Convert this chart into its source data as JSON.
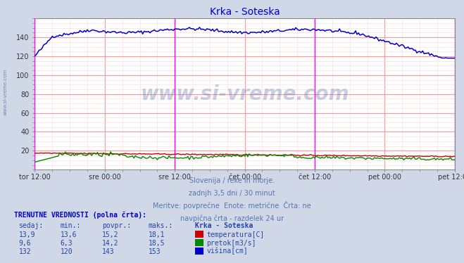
{
  "title": "Krka - Soteska",
  "title_color": "#0000cc",
  "bg_color": "#d0d8e8",
  "plot_bg_color": "#ffffff",
  "grid_color_major": "#ff9999",
  "grid_color_minor": "#ffdddd",
  "x_tick_labels": [
    "tor 12:00",
    "sre 00:00",
    "sre 12:00",
    "čet 00:00",
    "čet 12:00",
    "pet 00:00",
    "pet 12:00"
  ],
  "x_tick_positions": [
    0,
    24,
    48,
    72,
    96,
    120,
    144
  ],
  "vline_positions": [
    0,
    48,
    96,
    144
  ],
  "vline_color": "#ff00ff",
  "ylim": [
    0,
    160
  ],
  "yticks": [
    20,
    40,
    60,
    80,
    100,
    120,
    140
  ],
  "n_points": 289,
  "temp_color": "#cc0000",
  "flow_color": "#008800",
  "height_color": "#0000cc",
  "watermark": "www.si-vreme.com",
  "watermark_color": "#4466aa",
  "watermark_alpha": 0.3,
  "sub_text1": "Slovenija / reke in morje.",
  "sub_text2": "zadnjh 3,5 dni / 30 minut",
  "sub_text3": "Meritve: povprečne  Enote: metrične  Črta: ne",
  "sub_text4": "navpična črta - razdelek 24 ur",
  "table_header": "TRENUTNE VREDNOSTI (polna črta):",
  "col_headers": [
    "sedaj:",
    "min.:",
    "povpr.:",
    "maks.:",
    "Krka - Soteska"
  ],
  "row1": [
    "13,9",
    "13,6",
    "15,2",
    "18,1",
    "temperatura[C]"
  ],
  "row2": [
    "9,6",
    "6,3",
    "14,2",
    "18,5",
    "pretok[m3/s]"
  ],
  "row3": [
    "132",
    "120",
    "143",
    "153",
    "višina[cm]"
  ],
  "left_label": "www.si-vreme.com"
}
